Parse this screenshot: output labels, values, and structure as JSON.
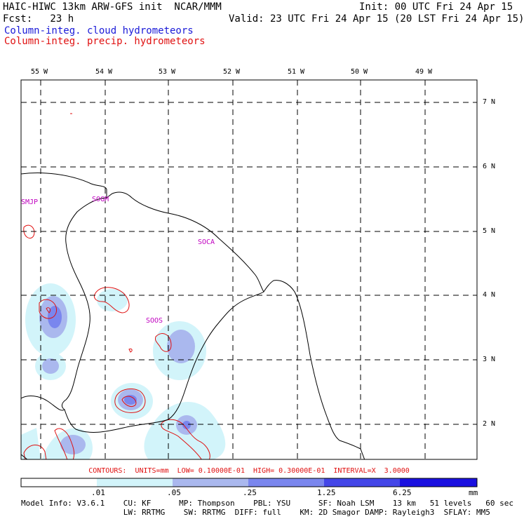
{
  "header": {
    "title_left": "HAIC-HIWC 13km ARW-GFS init  NCAR/MMM",
    "init": "Init: 00 UTC Fri 24 Apr 15",
    "fcst": "Fcst:   23 h",
    "valid": "Valid: 23 UTC Fri 24 Apr 15 (20 LST Fri 24 Apr 15)",
    "legend_cloud": "Column-integ. cloud hydrometeors",
    "legend_precip": "Column-integ. precip. hydrometeors"
  },
  "axes": {
    "lon_labels": [
      "55 W",
      "54 W",
      "53 W",
      "52 W",
      "51 W",
      "50 W",
      "49 W"
    ],
    "lat_labels": [
      "7 N",
      "6 N",
      "5 N",
      "4 N",
      "3 N",
      "2 N"
    ]
  },
  "stations": [
    "SMJP",
    "SOGM",
    "SOCA",
    "SOOS"
  ],
  "contours_note": "CONTOURS:  UNITS=mm  LOW= 0.10000E-01  HIGH= 0.30000E-01  INTERVAL=X  3.0000",
  "colorbar": {
    "ticks": [
      ".01",
      ".05",
      ".25",
      "1.25",
      "6.25"
    ],
    "unit": "mm",
    "colors": [
      "#ffffff",
      "#d2f4fa",
      "#aab8ee",
      "#7a86ee",
      "#4446e8",
      "#1a10e0"
    ]
  },
  "model_info": {
    "line1": "Model Info: V3.6.1    CU: KF      MP: Thompson    PBL: YSU      SF: Noah LSM    13 km   51 levels   60 sec",
    "line2": "                      LW: RRTMG    SW: RRTMG  DIFF: full    KM: 2D Smagor DAMP: Rayleigh3  SFLAY: MM5"
  }
}
